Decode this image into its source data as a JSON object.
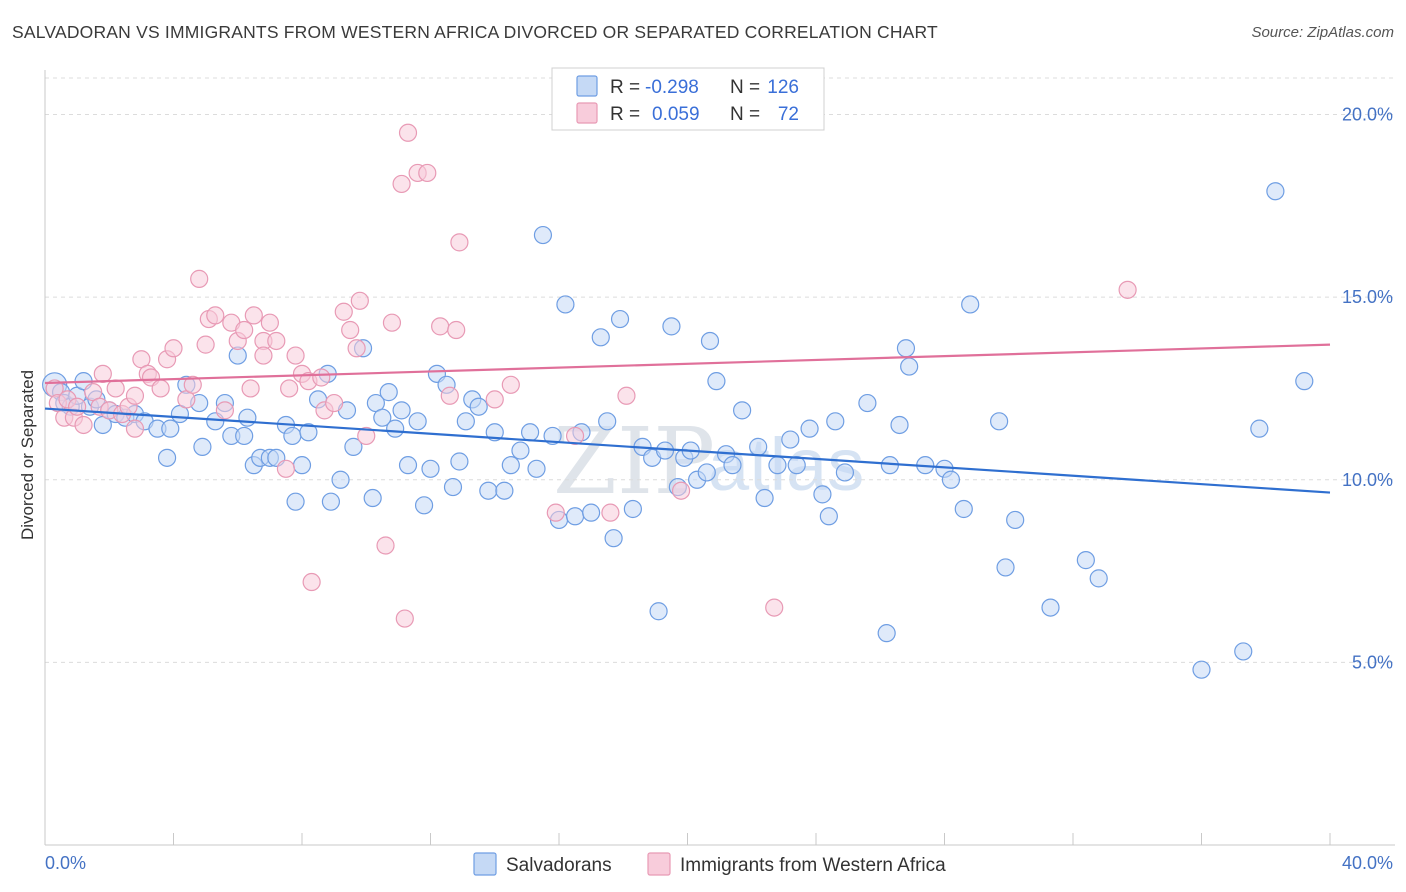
{
  "title": "SALVADORAN VS IMMIGRANTS FROM WESTERN AFRICA DIVORCED OR SEPARATED CORRELATION CHART",
  "source": "Source: ZipAtlas.com",
  "watermark": {
    "zip": "ZIP",
    "atlas": "atlas"
  },
  "legend": {
    "r_label": "R =",
    "n_label": "N =",
    "rows": [
      {
        "r": "-0.298",
        "n": "126",
        "color": "#6f9ee3",
        "fill": "#c5d9f5"
      },
      {
        "r": "0.059",
        "n": "72",
        "color": "#e89ab5",
        "fill": "#f8ccdb"
      }
    ]
  },
  "bottom_legend": [
    {
      "label": "Salvadorans",
      "color": "#6f9ee3",
      "fill": "#c5d9f5"
    },
    {
      "label": "Immigrants from Western Africa",
      "color": "#e89ab5",
      "fill": "#f8ccdb"
    }
  ],
  "chart_data": {
    "type": "scatter",
    "title": "SALVADORAN VS IMMIGRANTS FROM WESTERN AFRICA DIVORCED OR SEPARATED CORRELATION CHART",
    "xlabel": "",
    "ylabel": "Divorced or Separated",
    "xlim": [
      0,
      40
    ],
    "ylim": [
      0,
      21
    ],
    "x_tick_labels": [
      "0.0%",
      "40.0%"
    ],
    "y_ticks": [
      5,
      10,
      15,
      20
    ],
    "y_tick_labels": [
      "5.0%",
      "10.0%",
      "15.0%",
      "20.0%"
    ],
    "grid": "horizontal dashed",
    "legend_position": "top-center",
    "series": [
      {
        "name": "Salvadorans",
        "color": "#6f9ee3",
        "trend": [
          [
            0,
            11.95
          ],
          [
            40,
            9.65
          ]
        ],
        "points": [
          [
            0.3,
            12.6
          ],
          [
            0.5,
            12.4
          ],
          [
            0.6,
            12.1
          ],
          [
            0.8,
            12.0
          ],
          [
            1.0,
            12.3
          ],
          [
            1.2,
            12.7
          ],
          [
            1.4,
            12.0
          ],
          [
            1.6,
            12.2
          ],
          [
            1.8,
            11.5
          ],
          [
            2.0,
            11.9
          ],
          [
            2.2,
            11.8
          ],
          [
            2.5,
            11.7
          ],
          [
            2.8,
            11.8
          ],
          [
            3.1,
            11.6
          ],
          [
            3.5,
            11.4
          ],
          [
            3.8,
            10.6
          ],
          [
            3.9,
            11.4
          ],
          [
            4.2,
            11.8
          ],
          [
            4.4,
            12.6
          ],
          [
            4.8,
            12.1
          ],
          [
            4.9,
            10.9
          ],
          [
            5.3,
            11.6
          ],
          [
            5.6,
            12.1
          ],
          [
            5.8,
            11.2
          ],
          [
            6.0,
            13.4
          ],
          [
            6.2,
            11.2
          ],
          [
            6.3,
            11.7
          ],
          [
            6.5,
            10.4
          ],
          [
            6.7,
            10.6
          ],
          [
            7.0,
            10.6
          ],
          [
            7.2,
            10.6
          ],
          [
            7.5,
            11.5
          ],
          [
            7.7,
            11.2
          ],
          [
            7.8,
            9.4
          ],
          [
            8.0,
            10.4
          ],
          [
            8.2,
            11.3
          ],
          [
            8.5,
            12.2
          ],
          [
            8.8,
            12.9
          ],
          [
            8.9,
            9.4
          ],
          [
            9.2,
            10.0
          ],
          [
            9.4,
            11.9
          ],
          [
            9.6,
            10.9
          ],
          [
            9.9,
            13.6
          ],
          [
            10.2,
            9.5
          ],
          [
            10.3,
            12.1
          ],
          [
            10.5,
            11.7
          ],
          [
            10.7,
            12.4
          ],
          [
            10.9,
            11.4
          ],
          [
            11.1,
            11.9
          ],
          [
            11.3,
            10.4
          ],
          [
            11.6,
            11.6
          ],
          [
            11.8,
            9.3
          ],
          [
            12.0,
            10.3
          ],
          [
            12.2,
            12.9
          ],
          [
            12.5,
            12.6
          ],
          [
            12.7,
            9.8
          ],
          [
            12.9,
            10.5
          ],
          [
            13.1,
            11.6
          ],
          [
            13.3,
            12.2
          ],
          [
            13.5,
            12.0
          ],
          [
            13.8,
            9.7
          ],
          [
            14.0,
            11.3
          ],
          [
            14.3,
            9.7
          ],
          [
            14.5,
            10.4
          ],
          [
            14.8,
            10.8
          ],
          [
            15.1,
            11.3
          ],
          [
            15.3,
            10.3
          ],
          [
            15.5,
            16.7
          ],
          [
            15.8,
            11.2
          ],
          [
            16.0,
            8.9
          ],
          [
            16.2,
            14.8
          ],
          [
            16.5,
            9.0
          ],
          [
            16.7,
            11.3
          ],
          [
            17.0,
            9.1
          ],
          [
            17.3,
            13.9
          ],
          [
            17.5,
            11.6
          ],
          [
            17.7,
            8.4
          ],
          [
            17.9,
            14.4
          ],
          [
            18.3,
            9.2
          ],
          [
            18.6,
            10.9
          ],
          [
            18.9,
            10.6
          ],
          [
            19.1,
            6.4
          ],
          [
            19.3,
            10.8
          ],
          [
            19.5,
            14.2
          ],
          [
            19.7,
            9.8
          ],
          [
            19.9,
            10.6
          ],
          [
            20.1,
            10.8
          ],
          [
            20.3,
            10.0
          ],
          [
            20.7,
            13.8
          ],
          [
            20.9,
            12.7
          ],
          [
            21.2,
            10.7
          ],
          [
            21.4,
            10.4
          ],
          [
            21.7,
            11.9
          ],
          [
            22.2,
            10.9
          ],
          [
            22.4,
            9.5
          ],
          [
            22.8,
            10.4
          ],
          [
            23.2,
            11.1
          ],
          [
            23.4,
            10.4
          ],
          [
            23.8,
            11.4
          ],
          [
            24.2,
            9.6
          ],
          [
            24.4,
            9.0
          ],
          [
            24.6,
            11.6
          ],
          [
            24.9,
            10.2
          ],
          [
            25.6,
            12.1
          ],
          [
            26.2,
            5.8
          ],
          [
            26.3,
            10.4
          ],
          [
            26.6,
            11.5
          ],
          [
            26.8,
            13.6
          ],
          [
            26.9,
            13.1
          ],
          [
            27.4,
            10.4
          ],
          [
            28.0,
            10.3
          ],
          [
            28.2,
            10.0
          ],
          [
            28.6,
            9.2
          ],
          [
            28.8,
            14.8
          ],
          [
            29.7,
            11.6
          ],
          [
            29.9,
            7.6
          ],
          [
            30.2,
            8.9
          ],
          [
            31.3,
            6.5
          ],
          [
            32.4,
            7.8
          ],
          [
            32.8,
            7.3
          ],
          [
            36.0,
            4.8
          ],
          [
            37.3,
            5.3
          ],
          [
            37.8,
            11.4
          ],
          [
            38.3,
            17.9
          ],
          [
            39.2,
            12.7
          ],
          [
            20.6,
            10.2
          ]
        ]
      },
      {
        "name": "Immigrants from Western Africa",
        "color": "#e89ab5",
        "trend": [
          [
            0,
            12.65
          ],
          [
            40,
            13.7
          ]
        ],
        "points": [
          [
            0.3,
            12.5
          ],
          [
            0.4,
            12.1
          ],
          [
            0.6,
            11.7
          ],
          [
            0.7,
            12.2
          ],
          [
            0.9,
            11.7
          ],
          [
            1.0,
            12.0
          ],
          [
            1.2,
            11.5
          ],
          [
            1.5,
            12.4
          ],
          [
            1.7,
            12.0
          ],
          [
            1.8,
            12.9
          ],
          [
            2.0,
            11.9
          ],
          [
            2.2,
            12.5
          ],
          [
            2.4,
            11.8
          ],
          [
            2.6,
            12.0
          ],
          [
            2.8,
            11.4
          ],
          [
            2.8,
            12.3
          ],
          [
            3.0,
            13.3
          ],
          [
            3.2,
            12.9
          ],
          [
            3.3,
            12.8
          ],
          [
            3.6,
            12.5
          ],
          [
            3.8,
            13.3
          ],
          [
            4.0,
            13.6
          ],
          [
            4.4,
            12.2
          ],
          [
            4.6,
            12.6
          ],
          [
            4.8,
            15.5
          ],
          [
            5.0,
            13.7
          ],
          [
            5.1,
            14.4
          ],
          [
            5.3,
            14.5
          ],
          [
            5.6,
            11.9
          ],
          [
            5.8,
            14.3
          ],
          [
            6.0,
            13.8
          ],
          [
            6.2,
            14.1
          ],
          [
            6.4,
            12.5
          ],
          [
            6.5,
            14.5
          ],
          [
            6.8,
            13.8
          ],
          [
            6.8,
            13.4
          ],
          [
            7.0,
            14.3
          ],
          [
            7.2,
            13.8
          ],
          [
            7.5,
            10.3
          ],
          [
            7.6,
            12.5
          ],
          [
            7.8,
            13.4
          ],
          [
            8.0,
            12.9
          ],
          [
            8.2,
            12.7
          ],
          [
            8.3,
            7.2
          ],
          [
            8.6,
            12.8
          ],
          [
            8.7,
            11.9
          ],
          [
            9.0,
            12.1
          ],
          [
            9.3,
            14.6
          ],
          [
            9.5,
            14.1
          ],
          [
            9.7,
            13.6
          ],
          [
            9.8,
            14.9
          ],
          [
            10.0,
            11.2
          ],
          [
            10.6,
            8.2
          ],
          [
            10.8,
            14.3
          ],
          [
            11.1,
            18.1
          ],
          [
            11.2,
            6.2
          ],
          [
            11.3,
            19.5
          ],
          [
            11.6,
            18.4
          ],
          [
            11.9,
            18.4
          ],
          [
            12.3,
            14.2
          ],
          [
            12.6,
            12.3
          ],
          [
            12.8,
            14.1
          ],
          [
            12.9,
            16.5
          ],
          [
            14.0,
            12.2
          ],
          [
            14.5,
            12.6
          ],
          [
            15.9,
            9.1
          ],
          [
            16.5,
            11.2
          ],
          [
            17.6,
            9.1
          ],
          [
            18.1,
            12.3
          ],
          [
            19.8,
            9.7
          ],
          [
            22.7,
            6.5
          ],
          [
            33.7,
            15.2
          ]
        ]
      }
    ]
  }
}
